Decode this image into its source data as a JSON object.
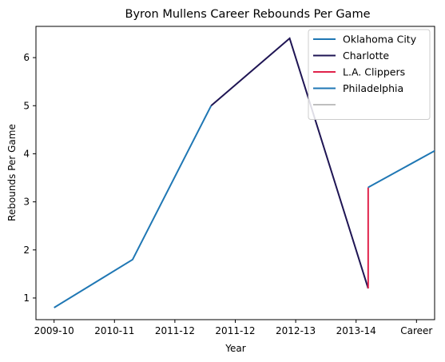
{
  "chart_data": {
    "type": "line",
    "title": "Byron Mullens Career Rebounds Per Game",
    "xlabel": "Year",
    "ylabel": "Rebounds Per Game",
    "x_ticks": [
      "2009-10",
      "2010-11",
      "2011-12",
      "2011-12",
      "2012-13",
      "2013-14",
      "Career"
    ],
    "y_ticks": [
      1,
      2,
      3,
      4,
      5,
      6
    ],
    "xlim": [
      -0.3,
      6.3
    ],
    "ylim": [
      0.55,
      6.65
    ],
    "grid": false,
    "legend_position": "top-right",
    "series": [
      {
        "name": "Oklahoma City",
        "color": "#1f77b4",
        "points": [
          [
            0,
            0.8
          ],
          [
            1.3,
            1.8
          ],
          [
            2.6,
            5.0
          ]
        ]
      },
      {
        "name": "Charlotte",
        "color": "#1f1554",
        "points": [
          [
            2.6,
            5.0
          ],
          [
            3.9,
            6.4
          ],
          [
            5.2,
            1.2
          ]
        ]
      },
      {
        "name": "L.A. Clippers",
        "color": "#e0224a",
        "points": [
          [
            5.2,
            1.2
          ],
          [
            5.2,
            3.3
          ]
        ]
      },
      {
        "name": "Philadelphia",
        "color": "#1f77b4",
        "points": [
          [
            5.2,
            3.3
          ],
          [
            6.5,
            4.2
          ]
        ]
      },
      {
        "name": "",
        "color": "#bfbfbf",
        "points": []
      }
    ]
  }
}
